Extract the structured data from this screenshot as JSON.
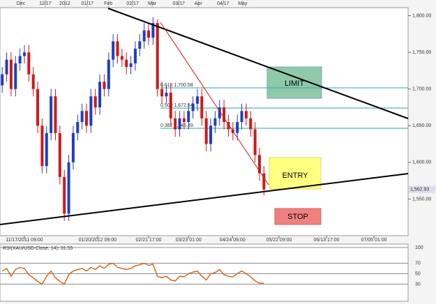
{
  "chart_data": {
    "type": "candlestick",
    "xlim": [
      0,
      92
    ],
    "top_xticks": [
      {
        "value": 4.7,
        "label": "Dec"
      },
      {
        "value": 10.2,
        "label": "12/17"
      },
      {
        "value": 14.6,
        "label": "2012"
      },
      {
        "value": 19.7,
        "label": "01/17"
      },
      {
        "value": 24.4,
        "label": "Feb"
      },
      {
        "value": 29.9,
        "label": "02/17"
      },
      {
        "value": 34.3,
        "label": "Mar"
      },
      {
        "value": 40.3,
        "label": "03/17"
      },
      {
        "value": 44.7,
        "label": "Apr"
      },
      {
        "value": 50.3,
        "label": "04/17"
      },
      {
        "value": 54.7,
        "label": "May"
      }
    ],
    "xticks": [
      {
        "value": 5.5,
        "label": "11/17/2011 09:00"
      },
      {
        "value": 22,
        "label": "01/20/2012 09:00"
      },
      {
        "value": 33.5,
        "label": "02/21 17:00"
      },
      {
        "value": 42.5,
        "label": "03/23 01:00"
      },
      {
        "value": 52.4,
        "label": "04/24 09:00"
      },
      {
        "value": 62.9,
        "label": "05/22 09:00"
      },
      {
        "value": 73.6,
        "label": "06/13 17:00"
      },
      {
        "value": 84.3,
        "label": "07/05 01:00"
      }
    ],
    "ylim": [
      1500,
      1810
    ],
    "yticks": [
      {
        "value": 1800,
        "label": "1,800.00"
      },
      {
        "value": 1750,
        "label": "1,750.00"
      },
      {
        "value": 1700,
        "label": "1,700.00"
      },
      {
        "value": 1650,
        "label": "1,650.00"
      },
      {
        "value": 1600,
        "label": "1,600.00"
      },
      {
        "value": 1550,
        "label": "1,550.00"
      }
    ],
    "up_color": "#1f3fbf",
    "down_color": "#d01818",
    "open": [
      1705,
      1720,
      1740,
      1700,
      1735,
      1745,
      1750,
      1720,
      1700,
      1650,
      1595,
      1640,
      1690,
      1640,
      1580,
      1530,
      1600,
      1640,
      1655,
      1670,
      1650,
      1690,
      1675,
      1710,
      1700,
      1740,
      1765,
      1745,
      1740,
      1730,
      1735,
      1755,
      1765,
      1780,
      1770,
      1790,
      1700,
      1690,
      1695,
      1660,
      1645,
      1660,
      1655,
      1670,
      1680,
      1690,
      1660,
      1625,
      1650,
      1660,
      1675,
      1655,
      1645,
      1640,
      1655,
      1670,
      1660,
      1645,
      1610,
      1585
    ],
    "high": [
      1730,
      1750,
      1750,
      1745,
      1755,
      1760,
      1760,
      1730,
      1710,
      1660,
      1650,
      1700,
      1700,
      1650,
      1590,
      1610,
      1650,
      1665,
      1680,
      1680,
      1700,
      1700,
      1720,
      1720,
      1750,
      1775,
      1775,
      1755,
      1750,
      1745,
      1765,
      1775,
      1790,
      1790,
      1798,
      1795,
      1710,
      1705,
      1705,
      1670,
      1670,
      1670,
      1680,
      1690,
      1700,
      1700,
      1670,
      1660,
      1670,
      1685,
      1685,
      1665,
      1655,
      1665,
      1680,
      1680,
      1670,
      1655,
      1620,
      1595
    ],
    "low": [
      1695,
      1710,
      1690,
      1690,
      1725,
      1735,
      1710,
      1690,
      1640,
      1585,
      1585,
      1630,
      1630,
      1570,
      1520,
      1520,
      1590,
      1630,
      1645,
      1640,
      1640,
      1665,
      1665,
      1690,
      1690,
      1730,
      1735,
      1730,
      1720,
      1720,
      1725,
      1745,
      1755,
      1760,
      1760,
      1690,
      1680,
      1680,
      1650,
      1635,
      1635,
      1645,
      1645,
      1660,
      1670,
      1650,
      1615,
      1615,
      1640,
      1650,
      1645,
      1635,
      1630,
      1630,
      1645,
      1650,
      1635,
      1600,
      1575,
      1555
    ],
    "close": [
      1720,
      1740,
      1700,
      1735,
      1745,
      1750,
      1720,
      1700,
      1650,
      1595,
      1640,
      1690,
      1640,
      1580,
      1530,
      1600,
      1640,
      1655,
      1670,
      1650,
      1690,
      1675,
      1710,
      1700,
      1740,
      1765,
      1745,
      1740,
      1730,
      1735,
      1755,
      1765,
      1780,
      1770,
      1790,
      1700,
      1690,
      1695,
      1660,
      1645,
      1660,
      1655,
      1670,
      1680,
      1690,
      1660,
      1625,
      1650,
      1660,
      1675,
      1655,
      1645,
      1640,
      1655,
      1670,
      1660,
      1645,
      1610,
      1585,
      1562.93
    ],
    "last_price_label": "1,562.93",
    "fib_labels": [
      "0.618  1,700.58",
      "0.500  1,672.54",
      "0.382  1,645.39"
    ],
    "annotations": [
      "LIMIT",
      "ENTRY",
      "STOP"
    ],
    "rsi": {
      "title": "RSI(XAU/USD.Close, 14): 31.55",
      "color": "#d2691e",
      "ylim": [
        0,
        100
      ],
      "yticks": [
        100,
        70,
        50,
        30
      ],
      "values": [
        55,
        60,
        45,
        58,
        62,
        60,
        48,
        42,
        35,
        30,
        45,
        55,
        42,
        35,
        30,
        48,
        55,
        58,
        60,
        55,
        62,
        58,
        65,
        60,
        68,
        70,
        62,
        60,
        58,
        60,
        65,
        67,
        70,
        66,
        68,
        45,
        42,
        45,
        38,
        36,
        45,
        44,
        50,
        53,
        55,
        45,
        38,
        50,
        52,
        58,
        48,
        45,
        44,
        50,
        55,
        50,
        44,
        36,
        32,
        31.55
      ]
    }
  }
}
